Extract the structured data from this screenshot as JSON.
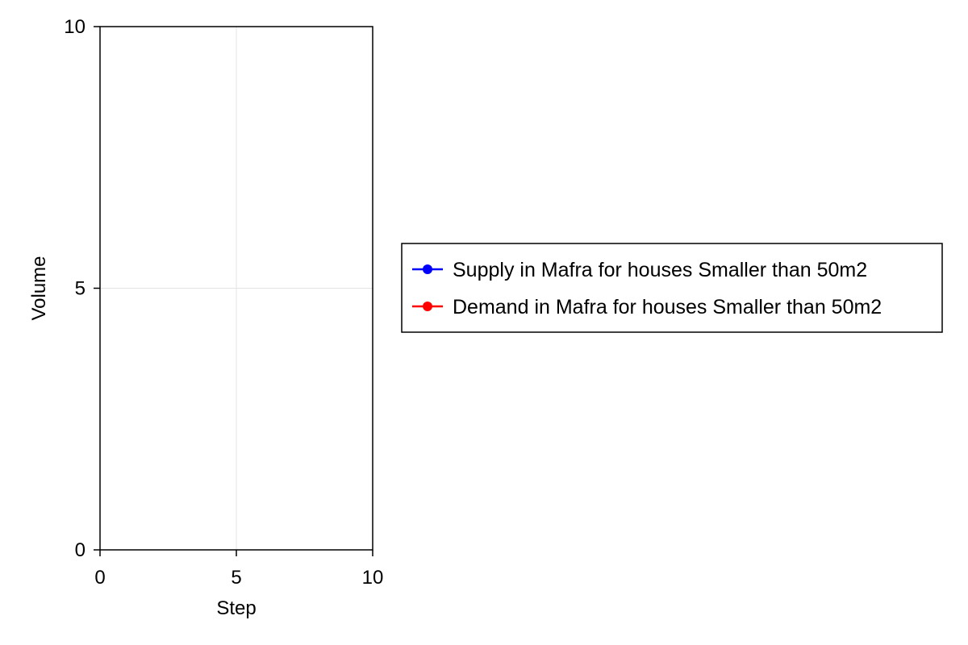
{
  "chart_data": {
    "type": "line",
    "title": "",
    "xlabel": "Step",
    "ylabel": "Volume",
    "xlim": [
      0,
      10
    ],
    "ylim": [
      0,
      10
    ],
    "xticks": [
      0,
      5,
      10
    ],
    "yticks": [
      0,
      5,
      10
    ],
    "grid": true,
    "legend_position": "right",
    "series": [
      {
        "name": "Supply in Mafra for houses Smaller than 50m2",
        "color": "#0000ff",
        "x": [],
        "y": []
      },
      {
        "name": "Demand in Mafra for houses Smaller than 50m2",
        "color": "#ff0000",
        "x": [],
        "y": []
      }
    ]
  }
}
